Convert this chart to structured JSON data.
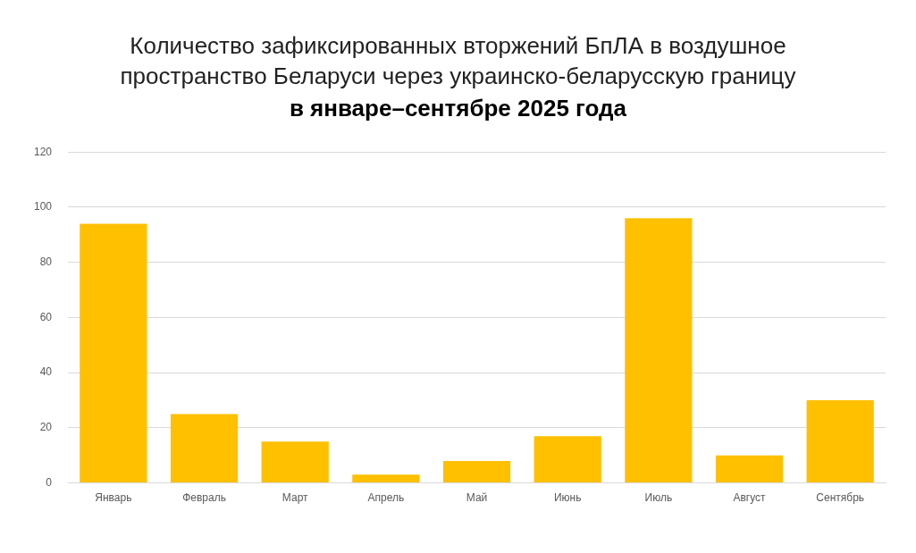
{
  "chart_data": {
    "type": "bar",
    "title": "Количество зафиксированных вторжений БпЛА в воздушное пространство Беларуси через украинско-беларусскую границу",
    "subtitle": "в январе–сентябре 2025 года",
    "categories": [
      "Январь",
      "Февраль",
      "Март",
      "Апрель",
      "Май",
      "Июнь",
      "Июль",
      "Август",
      "Сентябрь"
    ],
    "values": [
      94,
      25,
      15,
      3,
      8,
      17,
      96,
      10,
      30
    ],
    "color": "#ffc000",
    "ylim": [
      0,
      120
    ],
    "yticks": [
      0,
      20,
      40,
      60,
      80,
      100,
      120
    ],
    "grid": "y",
    "legend": false
  }
}
